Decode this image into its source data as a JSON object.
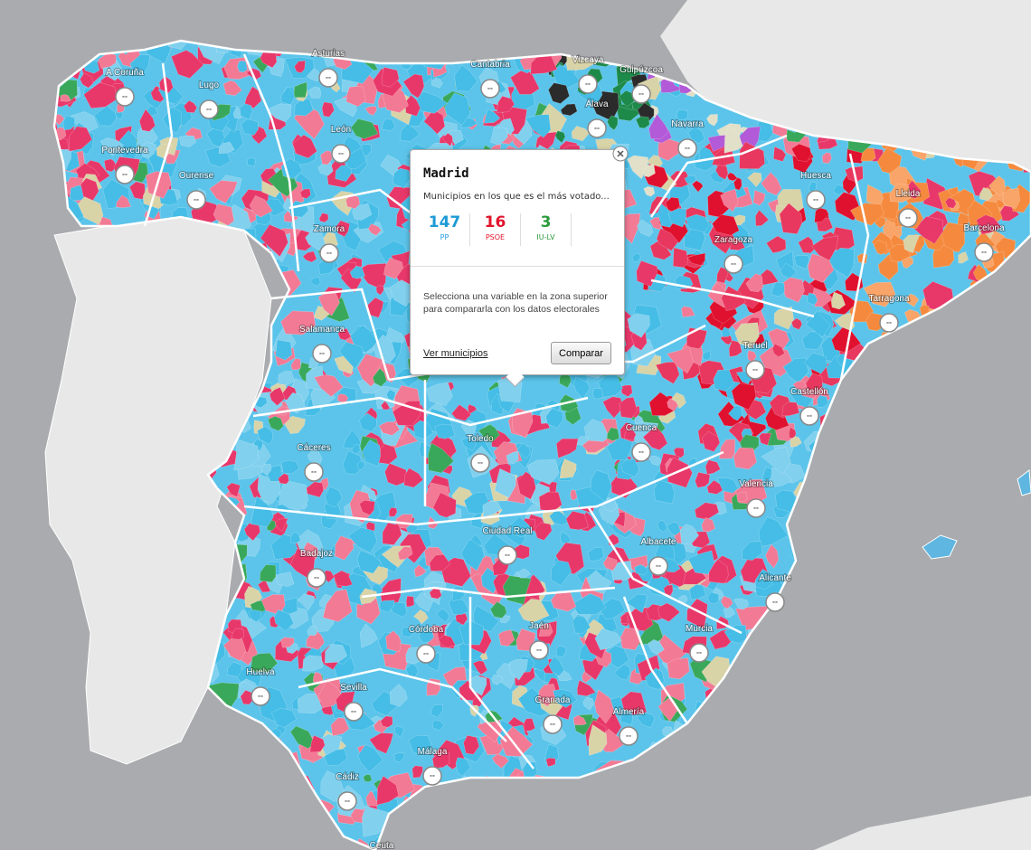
{
  "provinces": [
    "A Coruña",
    "Lugo",
    "Asturias",
    "Cantabria",
    "Vizcaya",
    "Guipúzcoa",
    "Álava",
    "Navarra",
    "León",
    "Pontevedra",
    "Ourense",
    "Huesca",
    "Lleida",
    "Zamora",
    "Barcelona",
    "Zaragoza",
    "Tarragona",
    "Salamanca",
    "Teruel",
    "Castellón",
    "Cuenca",
    "Toledo",
    "Cáceres",
    "Valencia",
    "Ciudad Real",
    "Albacete",
    "Badajoz",
    "Alicante",
    "Córdoba",
    "Jaén",
    "Murcia",
    "Huelva",
    "Sevilla",
    "Granada",
    "Almería",
    "Málaga",
    "Cádiz",
    "Ceuta"
  ],
  "marker_label": "--",
  "popup": {
    "title": "Madrid",
    "subtitle": "Municipios en los que es el más votado...",
    "stats": [
      {
        "value": 147,
        "party": "PP",
        "color": "#1e9ad6"
      },
      {
        "value": 16,
        "party": "PSOE",
        "color": "#e2142d"
      },
      {
        "value": 3,
        "party": "IU-LV",
        "color": "#2b9a3c"
      }
    ],
    "description": "Selecciona una variable en la zona superior para compararla con los datos electorales",
    "link": "Ver municipios",
    "button": "Comparar"
  }
}
